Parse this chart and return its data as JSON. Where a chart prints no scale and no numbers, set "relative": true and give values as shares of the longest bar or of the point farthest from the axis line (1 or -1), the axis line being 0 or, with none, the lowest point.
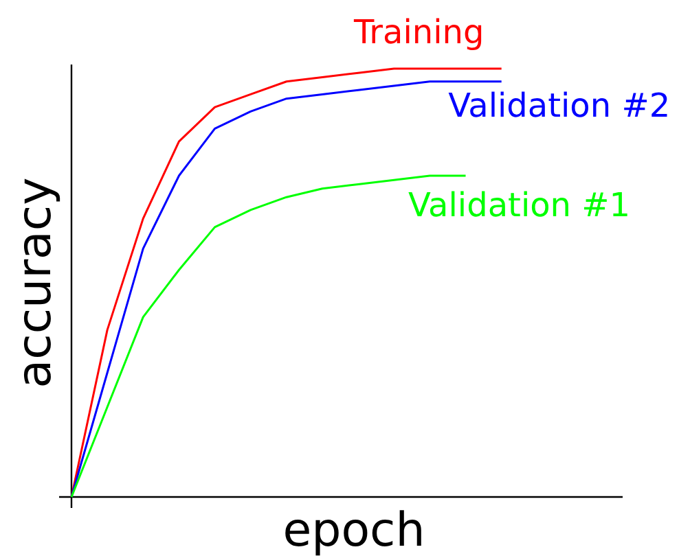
{
  "chart_data": {
    "type": "line",
    "relative": true,
    "xlabel": "epoch",
    "ylabel": "accuracy",
    "legend": false,
    "marker": "none",
    "line_style": "solid",
    "categories": [
      null,
      null,
      null,
      null,
      null,
      null,
      null,
      null,
      null,
      null,
      null,
      null,
      null
    ],
    "series": [
      {
        "name": "Training",
        "color": "#ff0000",
        "values": [
          0,
          0.39,
          0.65,
          0.83,
          0.91,
          0.94,
          0.97,
          0.98,
          0.99,
          1.0,
          1.0,
          1.0,
          1.0
        ]
      },
      {
        "name": "Validation #2",
        "color": "#0000ff",
        "values": [
          0,
          0.29,
          0.58,
          0.75,
          0.86,
          0.9,
          0.93,
          0.94,
          0.95,
          0.96,
          0.97,
          0.97,
          0.97
        ]
      },
      {
        "name": "Validation #1",
        "color": "#00ff00",
        "values": [
          0,
          0.21,
          0.42,
          0.53,
          0.63,
          0.67,
          0.7,
          0.72,
          0.73,
          0.74,
          0.75,
          0.75,
          null
        ]
      }
    ]
  }
}
